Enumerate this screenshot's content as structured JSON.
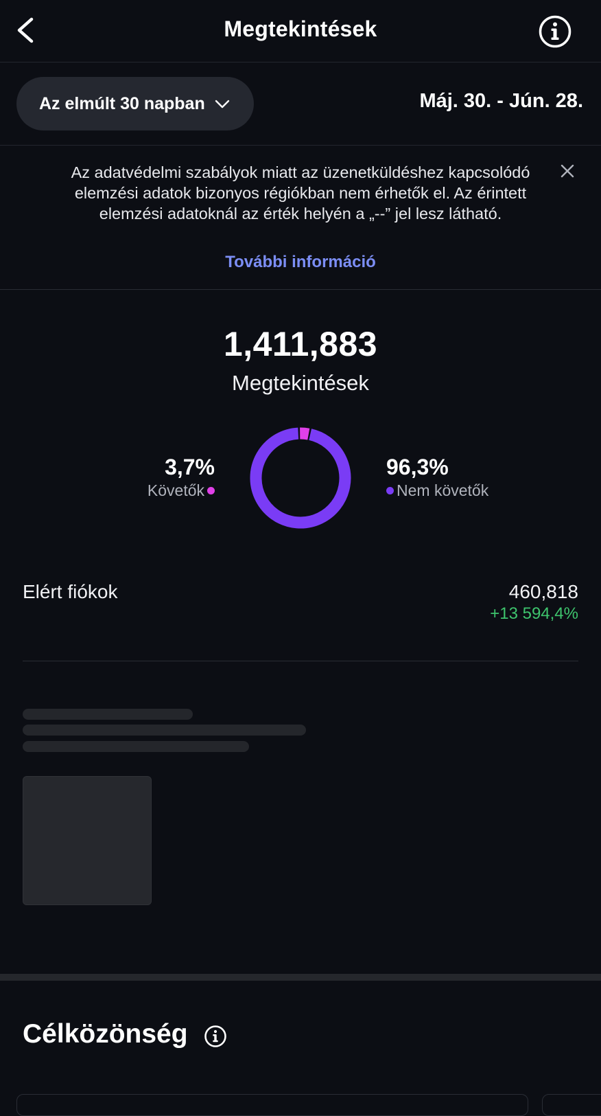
{
  "header": {
    "title": "Megtekintések",
    "back_icon": "chevron-left-icon",
    "info_icon": "info-circle-icon"
  },
  "filter": {
    "range_label": "Az elmúlt 30 napban",
    "date_range": "Máj. 30. - Jún. 28."
  },
  "notice": {
    "text": "Az adatvédelmi szabályok miatt az üzenetküldéshez kapcsolódó elemzési adatok bizonyos régiókban nem érhetők el. Az érintett elemzési adatoknál az érték helyén a „--” jel lesz látható.",
    "link": "További információ"
  },
  "summary": {
    "total": "1,411,883",
    "label": "Megtekintések",
    "followers": {
      "percent_label": "3,7%",
      "label": "Követők",
      "share": 0.037,
      "color": "#e040e8"
    },
    "non_followers": {
      "percent_label": "96,3%",
      "label": "Nem követők",
      "share": 0.963,
      "color": "#7a3cf5"
    }
  },
  "reach": {
    "label": "Elért fiókok",
    "value": "460,818",
    "change": "+13 594,4%",
    "change_color": "#3ec46d"
  },
  "audience": {
    "title": "Célközönség"
  }
}
